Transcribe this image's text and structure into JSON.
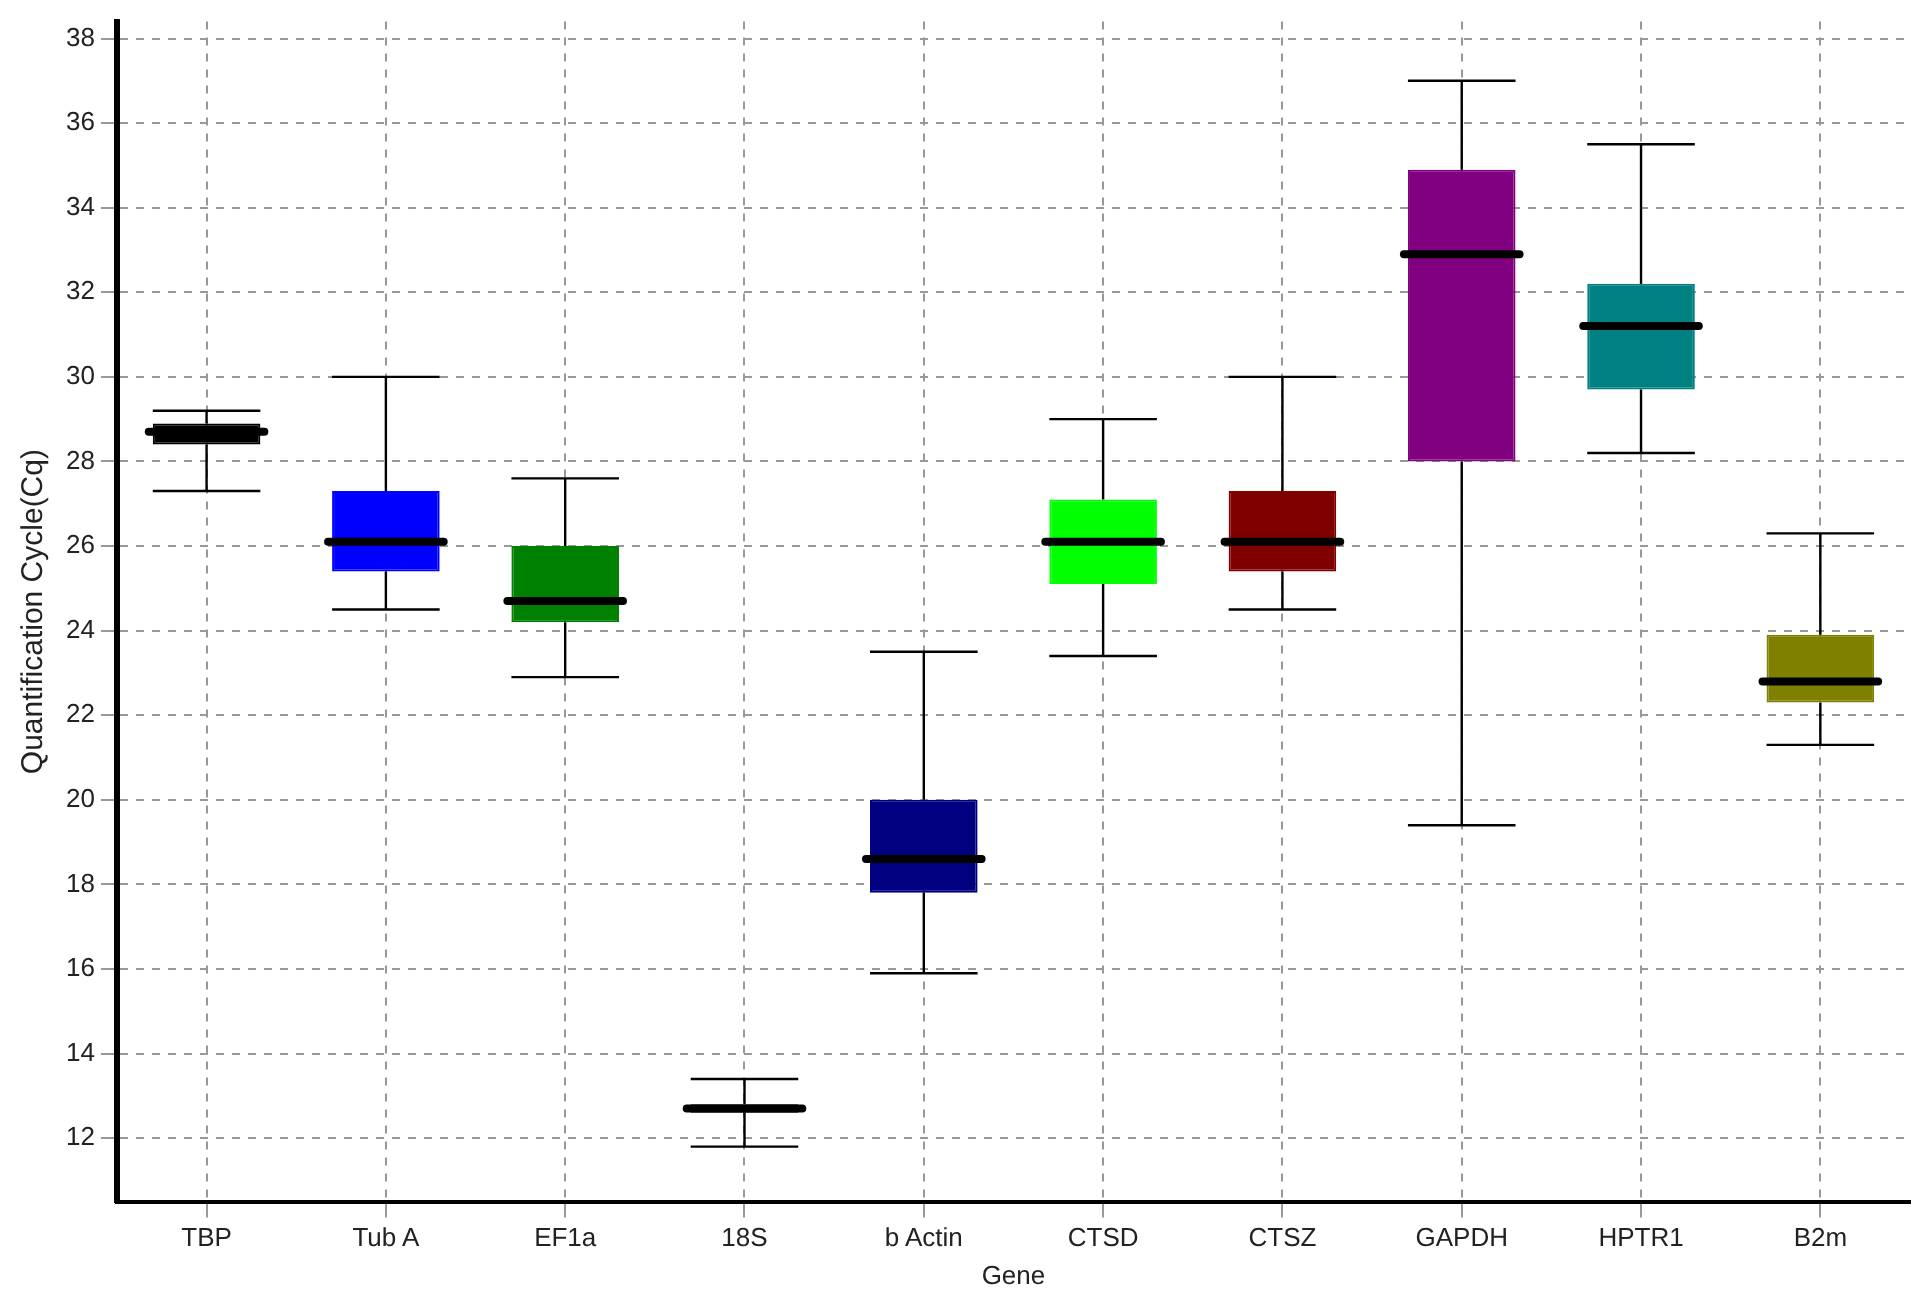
{
  "chart_data": {
    "type": "box",
    "xlabel": "Gene",
    "ylabel": "Quantification Cycle(Cq)",
    "categories": [
      "TBP",
      "Tub A",
      "EF1a",
      "18S",
      "b Actin",
      "CTSD",
      "CTSZ",
      "GAPDH",
      "HPTR1",
      "B2m"
    ],
    "colors": [
      "#000000",
      "#0000ff",
      "#008000",
      "#000000",
      "#000080",
      "#00ff00",
      "#800000",
      "#800080",
      "#008080",
      "#808000"
    ],
    "boxes": [
      {
        "low": 27.3,
        "q1": 28.4,
        "median": 28.7,
        "q3": 28.9,
        "high": 29.2
      },
      {
        "low": 24.5,
        "q1": 25.4,
        "median": 26.1,
        "q3": 27.3,
        "high": 30.0
      },
      {
        "low": 22.9,
        "q1": 24.2,
        "median": 24.7,
        "q3": 26.0,
        "high": 27.6
      },
      {
        "low": 11.8,
        "q1": 12.6,
        "median": 12.7,
        "q3": 12.8,
        "high": 13.4
      },
      {
        "low": 15.9,
        "q1": 17.8,
        "median": 18.6,
        "q3": 20.0,
        "high": 23.5
      },
      {
        "low": 23.4,
        "q1": 25.1,
        "median": 26.1,
        "q3": 27.1,
        "high": 29.0
      },
      {
        "low": 24.5,
        "q1": 25.4,
        "median": 26.1,
        "q3": 27.3,
        "high": 30.0
      },
      {
        "low": 19.4,
        "q1": 28.0,
        "median": 32.9,
        "q3": 34.9,
        "high": 37.0
      },
      {
        "low": 28.2,
        "q1": 29.7,
        "median": 31.2,
        "q3": 32.2,
        "high": 35.5
      },
      {
        "low": 21.3,
        "q1": 22.3,
        "median": 22.8,
        "q3": 23.9,
        "high": 26.3
      }
    ],
    "ylim": [
      10.5,
      38.4
    ],
    "yticks": [
      12,
      14,
      16,
      18,
      20,
      22,
      24,
      26,
      28,
      30,
      32,
      34,
      36,
      38
    ],
    "grid": true
  }
}
